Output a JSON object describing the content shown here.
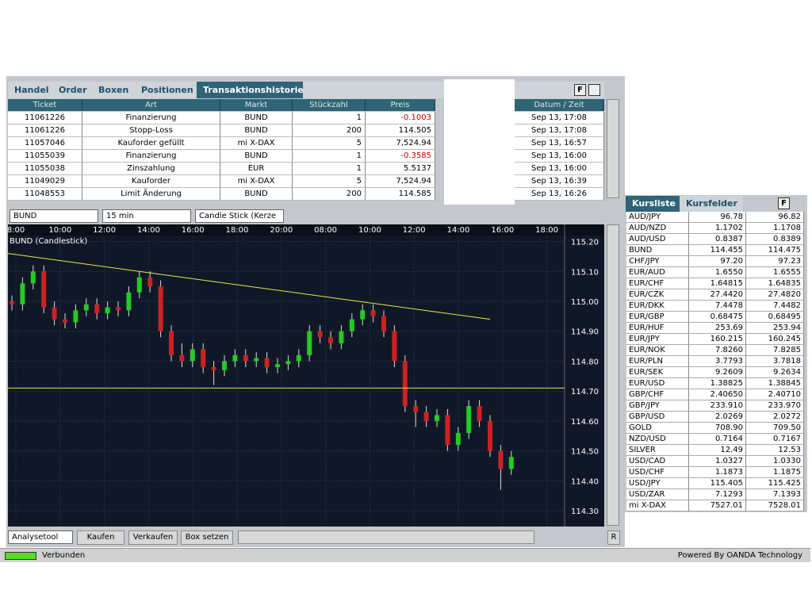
{
  "tabs": [
    "Handel",
    "Order",
    "Boxen",
    "Positionen",
    "Transaktionshistorie"
  ],
  "panel_button": "F",
  "transactions": {
    "columns": [
      "Ticket",
      "Art",
      "Markt",
      "Stückzahl",
      "Preis",
      "Datum / Zeit"
    ],
    "rows": [
      [
        "11061226",
        "Finanzierung",
        "BUND",
        "1",
        "-0.1003",
        "Sep 13, 17:08"
      ],
      [
        "11061226",
        "Stopp-Loss",
        "BUND",
        "200",
        "114.505",
        "Sep 13, 17:08"
      ],
      [
        "11057046",
        "Kauforder gefüllt",
        "mi X-DAX",
        "5",
        "7,524.94",
        "Sep 13, 16:57"
      ],
      [
        "11055039",
        "Finanzierung",
        "BUND",
        "1",
        "-0.3585",
        "Sep 13, 16:00"
      ],
      [
        "11055038",
        "Zinszahlung",
        "EUR",
        "1",
        "5.5137",
        "Sep 13, 16:00"
      ],
      [
        "11049029",
        "Kauforder",
        "mi X-DAX",
        "5",
        "7,524.94",
        "Sep 13, 16:39"
      ],
      [
        "11048553",
        "Limit Änderung",
        "BUND",
        "200",
        "114.585",
        "Sep 13, 16:26"
      ]
    ]
  },
  "chart_toolbar": {
    "instrument": "BUND",
    "interval": "15 min",
    "style": "Candle Stick (Kerze"
  },
  "chart_data": {
    "type": "candlestick",
    "title": "BUND (Candlestick)",
    "x_labels": [
      "8:00",
      "10:00",
      "12:00",
      "14:00",
      "16:00",
      "18:00",
      "20:00",
      "08:00",
      "10:00",
      "12:00",
      "14:00",
      "16:00",
      "18:00"
    ],
    "candles": [
      [
        115.0,
        115.02,
        114.97,
        114.99
      ],
      [
        114.99,
        115.08,
        114.97,
        115.06
      ],
      [
        115.06,
        115.12,
        115.04,
        115.1
      ],
      [
        115.1,
        115.12,
        114.96,
        114.98
      ],
      [
        114.98,
        115.0,
        114.92,
        114.94
      ],
      [
        114.94,
        114.96,
        114.91,
        114.93
      ],
      [
        114.93,
        114.99,
        114.91,
        114.97
      ],
      [
        114.97,
        115.01,
        114.95,
        114.99
      ],
      [
        114.99,
        115.01,
        114.94,
        114.96
      ],
      [
        114.96,
        115.0,
        114.94,
        114.98
      ],
      [
        114.98,
        115.0,
        114.95,
        114.97
      ],
      [
        114.97,
        115.05,
        114.95,
        115.03
      ],
      [
        115.03,
        115.1,
        115.01,
        115.08
      ],
      [
        115.08,
        115.1,
        115.03,
        115.05
      ],
      [
        115.05,
        115.07,
        114.88,
        114.9
      ],
      [
        114.9,
        114.92,
        114.8,
        114.82
      ],
      [
        114.82,
        114.86,
        114.78,
        114.8
      ],
      [
        114.8,
        114.86,
        114.78,
        114.84
      ],
      [
        114.84,
        114.86,
        114.76,
        114.78
      ],
      [
        114.78,
        114.8,
        114.72,
        114.77
      ],
      [
        114.77,
        114.82,
        114.75,
        114.8
      ],
      [
        114.8,
        114.84,
        114.78,
        114.82
      ],
      [
        114.82,
        114.84,
        114.78,
        114.8
      ],
      [
        114.8,
        114.83,
        114.78,
        114.81
      ],
      [
        114.81,
        114.83,
        114.76,
        114.78
      ],
      [
        114.78,
        114.81,
        114.76,
        114.79
      ],
      [
        114.79,
        114.82,
        114.77,
        114.8
      ],
      [
        114.8,
        114.84,
        114.78,
        114.82
      ],
      [
        114.82,
        114.92,
        114.8,
        114.9
      ],
      [
        114.9,
        114.92,
        114.86,
        114.88
      ],
      [
        114.88,
        114.9,
        114.84,
        114.86
      ],
      [
        114.86,
        114.92,
        114.84,
        114.9
      ],
      [
        114.9,
        114.96,
        114.88,
        114.94
      ],
      [
        114.94,
        114.99,
        114.92,
        114.97
      ],
      [
        114.97,
        114.99,
        114.93,
        114.95
      ],
      [
        114.95,
        114.97,
        114.88,
        114.9
      ],
      [
        114.9,
        114.92,
        114.78,
        114.8
      ],
      [
        114.8,
        114.82,
        114.63,
        114.65
      ],
      [
        114.65,
        114.67,
        114.58,
        114.63
      ],
      [
        114.63,
        114.65,
        114.58,
        114.6
      ],
      [
        114.6,
        114.64,
        114.58,
        114.62
      ],
      [
        114.62,
        114.64,
        114.5,
        114.52
      ],
      [
        114.52,
        114.58,
        114.5,
        114.56
      ],
      [
        114.56,
        114.67,
        114.54,
        114.65
      ],
      [
        114.65,
        114.67,
        114.58,
        114.6
      ],
      [
        114.6,
        114.62,
        114.48,
        114.5
      ],
      [
        114.5,
        114.52,
        114.37,
        114.44
      ],
      [
        114.44,
        114.5,
        114.42,
        114.48
      ]
    ],
    "ylim": [
      114.25,
      115.22
    ],
    "yticks": [
      {
        "value": 115.2,
        "label": "115.20"
      },
      {
        "value": 115.1,
        "label": "115.10"
      },
      {
        "value": 115.0,
        "label": "115.00"
      },
      {
        "value": 114.9,
        "label": "114.90"
      },
      {
        "value": 114.8,
        "label": "114.80"
      },
      {
        "value": 114.7,
        "label": "114.70"
      },
      {
        "value": 114.6,
        "label": "114.60"
      },
      {
        "value": 114.5,
        "label": "114.50"
      },
      {
        "value": 114.4,
        "label": "114.40"
      },
      {
        "value": 114.3,
        "label": "114.30"
      }
    ],
    "trend_line": [
      115.16,
      114.94
    ],
    "level": 114.71,
    "up_color": "#22cc22",
    "down_color": "#cc2222",
    "grid": true
  },
  "bottom_toolbar": {
    "analysis": "Analysetool",
    "buttons": [
      "Kaufen",
      "Verkaufen",
      "Box setzen"
    ],
    "zoom_reset": "R"
  },
  "quotes": {
    "tabs": [
      "Kursliste",
      "Kursfelder"
    ],
    "rows": [
      [
        "AUD/JPY",
        "96.78",
        "96.82"
      ],
      [
        "AUD/NZD",
        "1.1702",
        "1.1708"
      ],
      [
        "AUD/USD",
        "0.8387",
        "0.8389"
      ],
      [
        "BUND",
        "114.455",
        "114.475"
      ],
      [
        "CHF/JPY",
        "97.20",
        "97.23"
      ],
      [
        "EUR/AUD",
        "1.6550",
        "1.6555"
      ],
      [
        "EUR/CHF",
        "1.64815",
        "1.64835"
      ],
      [
        "EUR/CZK",
        "27.4420",
        "27.4820"
      ],
      [
        "EUR/DKK",
        "7.4478",
        "7.4482"
      ],
      [
        "EUR/GBP",
        "0.68475",
        "0.68495"
      ],
      [
        "EUR/HUF",
        "253.69",
        "253.94"
      ],
      [
        "EUR/JPY",
        "160.215",
        "160.245"
      ],
      [
        "EUR/NOK",
        "7.8260",
        "7.8285"
      ],
      [
        "EUR/PLN",
        "3.7793",
        "3.7818"
      ],
      [
        "EUR/SEK",
        "9.2609",
        "9.2634"
      ],
      [
        "EUR/USD",
        "1.38825",
        "1.38845"
      ],
      [
        "GBP/CHF",
        "2.40650",
        "2.40710"
      ],
      [
        "GBP/JPY",
        "233.910",
        "233.970"
      ],
      [
        "GBP/USD",
        "2.0269",
        "2.0272"
      ],
      [
        "GOLD",
        "708.90",
        "709.50"
      ],
      [
        "NZD/USD",
        "0.7164",
        "0.7167"
      ],
      [
        "SILVER",
        "12.49",
        "12.53"
      ],
      [
        "USD/CAD",
        "1.0327",
        "1.0330"
      ],
      [
        "USD/CHF",
        "1.1873",
        "1.1875"
      ],
      [
        "USD/JPY",
        "115.405",
        "115.425"
      ],
      [
        "USD/ZAR",
        "7.1293",
        "7.1393"
      ],
      [
        "mi X-DAX",
        "7527.01",
        "7528.01"
      ]
    ]
  },
  "status": {
    "connection": "Verbunden",
    "powered_by": "Powered By OANDA Technology"
  }
}
